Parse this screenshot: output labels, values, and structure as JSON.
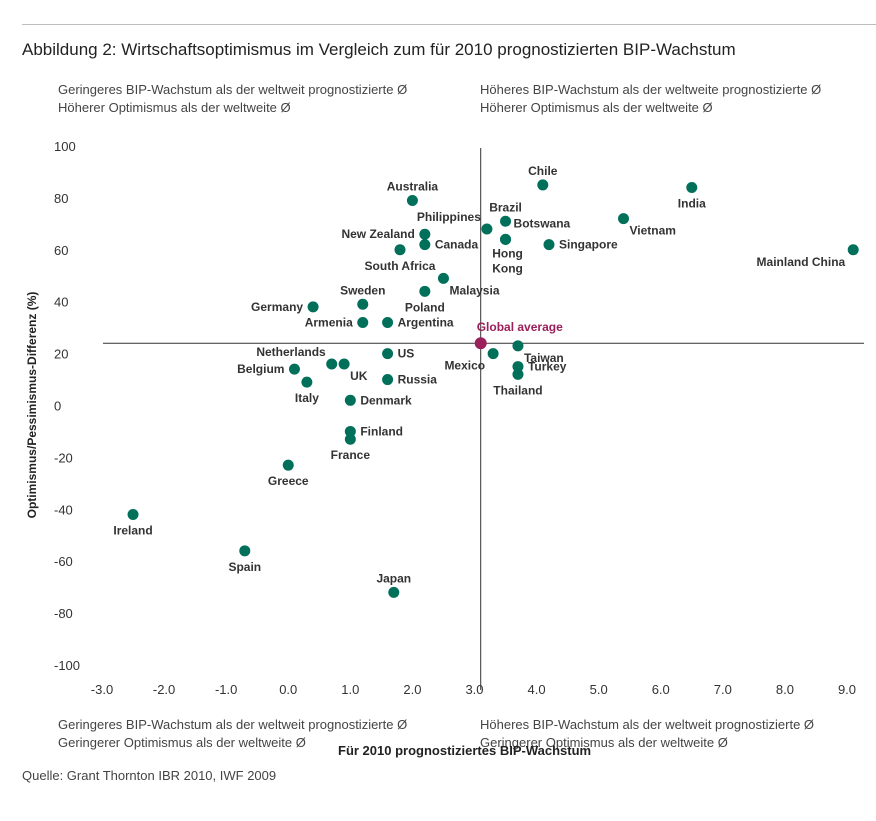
{
  "title": "Abbildung 2: Wirtschaftsoptimismus im Vergleich zum für 2010  prognostizierten BIP-Wachstum",
  "quadrants": {
    "top_left": [
      "Geringeres BIP-Wachstum als der weltweit prognostizierte Ø",
      "Höherer Optimismus als der weltweite Ø"
    ],
    "top_right": [
      "Höheres BIP-Wachstum als der weltweite prognostizierte Ø",
      "Höherer Optimismus als der weltweite Ø"
    ],
    "bottom_left": [
      "Geringeres BIP-Wachstum als der weltweit prognostizierte Ø",
      "Geringerer Optimismus als der weltweite Ø"
    ],
    "bottom_right": [
      "Höheres BIP-Wachstum als der weltweit prognostizierte Ø",
      "Geringerer Optimismus als der weltweite Ø"
    ]
  },
  "source": "Quelle: Grant Thornton IBR 2010, IWF 2009",
  "colors": {
    "point": "#00705a",
    "global": "#9b1f5b",
    "axis": "#333333"
  },
  "chart_data": {
    "type": "scatter",
    "xlabel": "Für 2010 prognostiziertes BIP-Wachstum",
    "ylabel": "Optimismus/Pessimismus-Differenz (%)",
    "xlim": [
      -3.0,
      9.0
    ],
    "ylim": [
      -100,
      100
    ],
    "x_ticks": [
      "-3.0",
      "-2.0",
      "-1.0",
      "0.0",
      "1.0",
      "2.0",
      "3.0",
      "4.0",
      "5.0",
      "6.0",
      "7.0",
      "8.0",
      "9.0"
    ],
    "y_ticks": [
      "100",
      "80",
      "60",
      "40",
      "20",
      "0",
      "-20",
      "-40",
      "-60",
      "-80",
      "-100"
    ],
    "grid": false,
    "reference_lines": {
      "x": 3.1,
      "y": 24
    },
    "global_average": {
      "label": "Global average",
      "x": 3.1,
      "y": 24
    },
    "points": [
      {
        "label": "Chile",
        "x": 4.1,
        "y": 85,
        "pos": "above"
      },
      {
        "label": "India",
        "x": 6.5,
        "y": 84,
        "pos": "below"
      },
      {
        "label": "Australia",
        "x": 2.0,
        "y": 79,
        "pos": "above"
      },
      {
        "label": "Brazil",
        "x": 3.5,
        "y": 71,
        "pos": "above"
      },
      {
        "label": "Vietnam",
        "x": 5.4,
        "y": 72,
        "pos": "below-right"
      },
      {
        "label": "Philippines",
        "x": 3.2,
        "y": 68,
        "pos": "above-left"
      },
      {
        "label": "New Zealand",
        "x": 2.2,
        "y": 66,
        "pos": "left"
      },
      {
        "label": "Botswana",
        "x": 3.5,
        "y": 64,
        "pos": "up-right"
      },
      {
        "label": "Canada",
        "x": 2.2,
        "y": 62,
        "pos": "right"
      },
      {
        "label": "Singapore",
        "x": 4.2,
        "y": 62,
        "pos": "right"
      },
      {
        "label": "South Africa",
        "x": 1.8,
        "y": 60,
        "pos": "below"
      },
      {
        "label": "Hong Kong",
        "x": 3.5,
        "y": 64,
        "pos": "none"
      },
      {
        "label": "Mainland China",
        "x": 9.1,
        "y": 60,
        "pos": "below-left"
      },
      {
        "label": "Malaysia",
        "x": 2.5,
        "y": 49,
        "pos": "below-right"
      },
      {
        "label": "Poland",
        "x": 2.2,
        "y": 44,
        "pos": "below"
      },
      {
        "label": "Sweden",
        "x": 1.2,
        "y": 39,
        "pos": "above"
      },
      {
        "label": "Germany",
        "x": 0.4,
        "y": 38,
        "pos": "left"
      },
      {
        "label": "Armenia",
        "x": 1.2,
        "y": 32,
        "pos": "left"
      },
      {
        "label": "Argentina",
        "x": 1.6,
        "y": 32,
        "pos": "right"
      },
      {
        "label": "Taiwan",
        "x": 3.7,
        "y": 23,
        "pos": "below-right"
      },
      {
        "label": "Mexico",
        "x": 3.3,
        "y": 20,
        "pos": "below-left"
      },
      {
        "label": "US",
        "x": 1.6,
        "y": 20,
        "pos": "right"
      },
      {
        "label": "Netherlands",
        "x": 0.7,
        "y": 16,
        "pos": "above-left"
      },
      {
        "label": "UK",
        "x": 0.9,
        "y": 16,
        "pos": "below-right"
      },
      {
        "label": "Turkey",
        "x": 3.7,
        "y": 15,
        "pos": "right"
      },
      {
        "label": "Belgium",
        "x": 0.1,
        "y": 14,
        "pos": "left"
      },
      {
        "label": "Thailand",
        "x": 3.7,
        "y": 12,
        "pos": "below"
      },
      {
        "label": "Russia",
        "x": 1.6,
        "y": 10,
        "pos": "right"
      },
      {
        "label": "Italy",
        "x": 0.3,
        "y": 9,
        "pos": "below"
      },
      {
        "label": "Denmark",
        "x": 1.0,
        "y": 2,
        "pos": "right"
      },
      {
        "label": "Finland",
        "x": 1.0,
        "y": -10,
        "pos": "right"
      },
      {
        "label": "France",
        "x": 1.0,
        "y": -13,
        "pos": "below"
      },
      {
        "label": "Greece",
        "x": 0.0,
        "y": -23,
        "pos": "below"
      },
      {
        "label": "Ireland",
        "x": -2.5,
        "y": -42,
        "pos": "below"
      },
      {
        "label": "Spain",
        "x": -0.7,
        "y": -56,
        "pos": "below"
      },
      {
        "label": "Japan",
        "x": 1.7,
        "y": -72,
        "pos": "above"
      }
    ]
  }
}
